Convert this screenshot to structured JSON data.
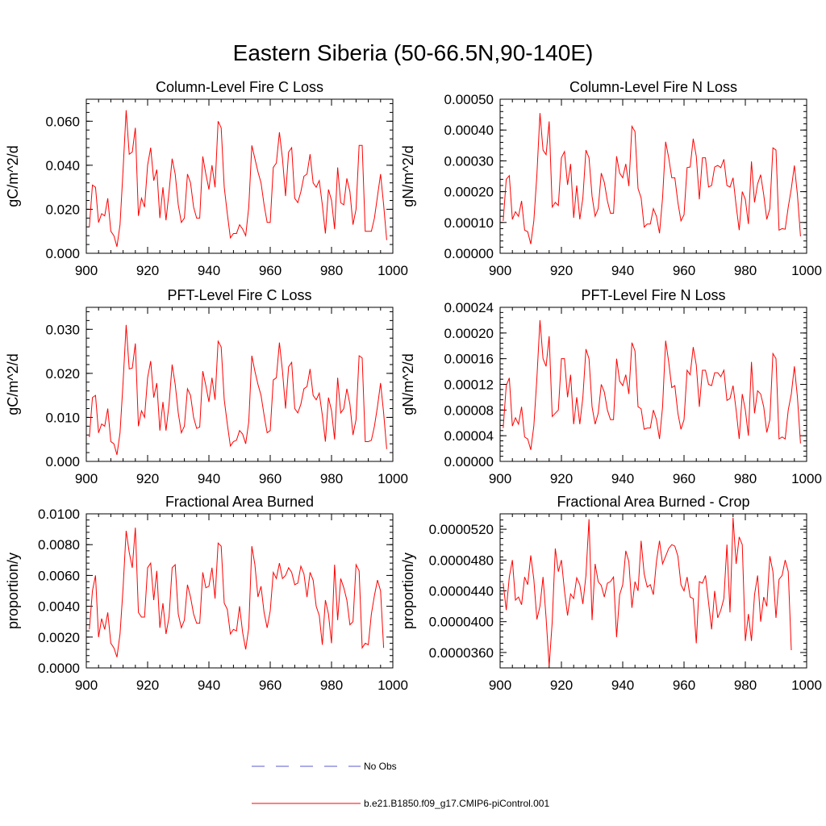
{
  "figure": {
    "title": "Eastern Siberia (50-66.5N,90-140E)"
  },
  "legend": [
    {
      "label": "No Obs",
      "color": "#5a5ad0",
      "style": "dashed"
    },
    {
      "label": "b.e21.B1850.f09_g17.CMIP6-piControl.001",
      "color": "#ff0000",
      "style": "solid"
    }
  ],
  "chart_data": [
    {
      "type": "line",
      "title": "Column-Level Fire C Loss",
      "ylabel": "gC/m^2/d",
      "xlim": [
        900,
        1000
      ],
      "ylim": [
        0,
        0.07
      ],
      "xticks": [
        "900",
        "920",
        "940",
        "960",
        "980",
        "1000"
      ],
      "yticks": [
        0.0,
        0.02,
        0.04,
        0.06
      ],
      "ytick_labels": [
        "0.000",
        "0.020",
        "0.040",
        "0.060"
      ],
      "series": [
        {
          "color": "#ff0000",
          "x_start": 901,
          "values": [
            0.012,
            0.031,
            0.03,
            0.014,
            0.018,
            0.017,
            0.025,
            0.01,
            0.008,
            0.003,
            0.013,
            0.038,
            0.065,
            0.045,
            0.046,
            0.057,
            0.017,
            0.025,
            0.021,
            0.04,
            0.048,
            0.033,
            0.038,
            0.016,
            0.03,
            0.015,
            0.028,
            0.043,
            0.036,
            0.022,
            0.014,
            0.016,
            0.036,
            0.032,
            0.021,
            0.016,
            0.016,
            0.044,
            0.036,
            0.029,
            0.04,
            0.03,
            0.06,
            0.057,
            0.03,
            0.018,
            0.007,
            0.009,
            0.009,
            0.013,
            0.011,
            0.008,
            0.021,
            0.049,
            0.043,
            0.037,
            0.032,
            0.022,
            0.014,
            0.014,
            0.039,
            0.041,
            0.055,
            0.043,
            0.026,
            0.046,
            0.048,
            0.025,
            0.023,
            0.028,
            0.035,
            0.036,
            0.045,
            0.032,
            0.03,
            0.033,
            0.022,
            0.009,
            0.029,
            0.024,
            0.011,
            0.039,
            0.023,
            0.022,
            0.034,
            0.028,
            0.013,
            0.02,
            0.049,
            0.049,
            0.01,
            0.01,
            0.01,
            0.016,
            0.026,
            0.036,
            0.022,
            0.006
          ]
        }
      ]
    },
    {
      "type": "line",
      "title": "Column-Level Fire N Loss",
      "ylabel": "gN/m^2/d",
      "xlim": [
        900,
        1000
      ],
      "ylim": [
        0,
        0.0005
      ],
      "xticks": [
        "900",
        "920",
        "940",
        "960",
        "980",
        "1000"
      ],
      "yticks": [
        0.0,
        0.0001,
        0.0002,
        0.0003,
        0.0004,
        0.0005
      ],
      "ytick_labels": [
        "0.00000",
        "0.00010",
        "0.00020",
        "0.00030",
        "0.00040",
        "0.00050"
      ],
      "series": [
        {
          "color": "#ff0000",
          "x_start": 901,
          "values": [
            0.000105,
            0.00024,
            0.000252,
            0.00011,
            0.000135,
            0.00012,
            0.00017,
            7.5e-05,
            7e-05,
            3e-05,
            0.000105,
            0.000255,
            0.000455,
            0.000335,
            0.00032,
            0.000428,
            0.00015,
            0.000165,
            0.000155,
            0.00031,
            0.00033,
            0.000222,
            0.00029,
            0.000115,
            0.00022,
            0.00011,
            0.00018,
            0.000335,
            0.00031,
            0.000185,
            0.00012,
            0.000145,
            0.00026,
            0.00023,
            0.00017,
            0.00013,
            0.00013,
            0.000315,
            0.00026,
            0.000245,
            0.00029,
            0.000218,
            0.000412,
            0.000395,
            0.00021,
            0.00018,
            8.5e-05,
            9.5e-05,
            9.5e-05,
            0.000145,
            0.00012,
            6.5e-05,
            0.00018,
            0.000362,
            0.00031,
            0.000245,
            0.000245,
            0.000165,
            0.000105,
            0.000125,
            0.000278,
            0.00028,
            0.000372,
            0.000315,
            0.000175,
            0.00031,
            0.00031,
            0.000215,
            0.00022,
            0.00028,
            0.000285,
            0.000278,
            0.000305,
            0.00022,
            0.000215,
            0.000245,
            0.000155,
            7.5e-05,
            0.0002,
            0.000175,
            9.5e-05,
            0.000298,
            0.000165,
            0.000225,
            0.000255,
            0.00019,
            0.00011,
            0.000145,
            0.000342,
            0.000335,
            7.5e-05,
            8e-05,
            7.8e-05,
            0.00015,
            0.00021,
            0.000285,
            0.00019,
            5.5e-05
          ]
        }
      ]
    },
    {
      "type": "line",
      "title": "PFT-Level Fire C Loss",
      "ylabel": "gC/m^2/d",
      "xlim": [
        900,
        1000
      ],
      "ylim": [
        0,
        0.035
      ],
      "xticks": [
        "900",
        "920",
        "940",
        "960",
        "980",
        "1000"
      ],
      "yticks": [
        0.0,
        0.01,
        0.02,
        0.03
      ],
      "ytick_labels": [
        "0.000",
        "0.010",
        "0.020",
        "0.030"
      ],
      "series": [
        {
          "color": "#ff0000",
          "x_start": 901,
          "values": [
            0.0055,
            0.0145,
            0.015,
            0.0065,
            0.0085,
            0.008,
            0.012,
            0.0045,
            0.004,
            0.0015,
            0.0065,
            0.018,
            0.031,
            0.021,
            0.0212,
            0.0268,
            0.008,
            0.0115,
            0.01,
            0.019,
            0.0228,
            0.0145,
            0.0178,
            0.007,
            0.0135,
            0.007,
            0.013,
            0.022,
            0.0175,
            0.011,
            0.0065,
            0.008,
            0.0165,
            0.015,
            0.01,
            0.0075,
            0.0078,
            0.0205,
            0.0172,
            0.0135,
            0.019,
            0.014,
            0.0273,
            0.026,
            0.014,
            0.0085,
            0.0035,
            0.0045,
            0.0048,
            0.007,
            0.0062,
            0.004,
            0.009,
            0.024,
            0.0205,
            0.0175,
            0.015,
            0.0105,
            0.0065,
            0.007,
            0.0185,
            0.019,
            0.027,
            0.0205,
            0.012,
            0.0215,
            0.0225,
            0.012,
            0.011,
            0.013,
            0.0165,
            0.017,
            0.021,
            0.015,
            0.014,
            0.0155,
            0.0105,
            0.0045,
            0.0145,
            0.0115,
            0.005,
            0.019,
            0.011,
            0.012,
            0.0165,
            0.013,
            0.006,
            0.0095,
            0.024,
            0.0235,
            0.0045,
            0.0045,
            0.0048,
            0.008,
            0.0125,
            0.0178,
            0.011,
            0.0028
          ]
        }
      ]
    },
    {
      "type": "line",
      "title": "PFT-Level Fire N Loss",
      "ylabel": "gN/m^2/d",
      "xlim": [
        900,
        1000
      ],
      "ylim": [
        0,
        0.00024
      ],
      "xticks": [
        "900",
        "920",
        "940",
        "960",
        "980",
        "1000"
      ],
      "yticks": [
        0.0,
        4e-05,
        8e-05,
        0.00012,
        0.00016,
        0.0002,
        0.00024
      ],
      "ytick_labels": [
        "0.00000",
        "0.00004",
        "0.00008",
        "0.00012",
        "0.00016",
        "0.00020",
        "0.00024"
      ],
      "series": [
        {
          "color": "#ff0000",
          "x_start": 901,
          "values": [
            5.2e-05,
            0.000118,
            0.00013,
            5.5e-05,
            6.8e-05,
            5.8e-05,
            8.5e-05,
            3.8e-05,
            3.5e-05,
            1.8e-05,
            5.5e-05,
            0.00013,
            0.00022,
            0.00016,
            0.000148,
            0.000195,
            7e-05,
            7.5e-05,
            8e-05,
            0.00016,
            0.00016,
            0.0001,
            0.000135,
            5.8e-05,
            0.0001,
            5.8e-05,
            0.0001,
            0.000175,
            0.00016,
            8.5e-05,
            5.8e-05,
            7.5e-05,
            0.00012,
            0.000108,
            8e-05,
            6.5e-05,
            6.5e-05,
            0.00016,
            0.000125,
            0.000118,
            0.000135,
            0.000105,
            0.000185,
            0.000172,
            8.5e-05,
            8.2e-05,
            5e-05,
            5.2e-05,
            5.2e-05,
            8e-05,
            6.5e-05,
            3.5e-05,
            8.5e-05,
            0.000188,
            0.000155,
            0.000115,
            0.000118,
            7.5e-05,
            5e-05,
            6.5e-05,
            0.000142,
            0.000135,
            0.000178,
            0.00015,
            8.5e-05,
            0.000142,
            0.000142,
            0.00012,
            0.000118,
            0.000138,
            0.000138,
            0.000132,
            0.000142,
            9.5e-05,
            9.8e-05,
            0.000118,
            8e-05,
            3.5e-05,
            0.000105,
            8e-05,
            4e-05,
            0.000155,
            7.5e-05,
            0.00011,
            0.000105,
            8.5e-05,
            4.5e-05,
            6.5e-05,
            0.000168,
            0.00016,
            3.5e-05,
            3.8e-05,
            3.5e-05,
            8e-05,
            0.000105,
            0.000148,
            0.0001,
            2.8e-05
          ]
        }
      ]
    },
    {
      "type": "line",
      "title": "Fractional Area Burned",
      "ylabel": "proportion/y",
      "xlim": [
        900,
        1000
      ],
      "ylim": [
        0,
        0.01
      ],
      "xticks": [
        "900",
        "920",
        "940",
        "960",
        "980",
        "1000"
      ],
      "yticks": [
        0.0,
        0.002,
        0.004,
        0.006,
        0.008,
        0.01
      ],
      "ytick_labels": [
        "0.0000",
        "0.0020",
        "0.0040",
        "0.0060",
        "0.0080",
        "0.0100"
      ],
      "series": [
        {
          "color": "#ff0000",
          "x_start": 901,
          "values": [
            0.0025,
            0.005,
            0.006,
            0.002,
            0.0032,
            0.0025,
            0.0036,
            0.0016,
            0.0013,
            0.0007,
            0.0022,
            0.0052,
            0.0089,
            0.0075,
            0.0065,
            0.0091,
            0.0036,
            0.0033,
            0.0033,
            0.0065,
            0.0068,
            0.0044,
            0.0063,
            0.0026,
            0.0042,
            0.0022,
            0.0033,
            0.0065,
            0.0067,
            0.0035,
            0.0026,
            0.0031,
            0.0054,
            0.0046,
            0.0035,
            0.0029,
            0.0029,
            0.0062,
            0.0052,
            0.0053,
            0.0065,
            0.0045,
            0.0081,
            0.0079,
            0.0042,
            0.0038,
            0.0022,
            0.0025,
            0.0024,
            0.004,
            0.0023,
            0.0012,
            0.0026,
            0.0079,
            0.0067,
            0.0046,
            0.0053,
            0.0036,
            0.0026,
            0.0037,
            0.0062,
            0.0058,
            0.0068,
            0.0058,
            0.006,
            0.0065,
            0.0062,
            0.0054,
            0.0055,
            0.0066,
            0.0061,
            0.0046,
            0.0062,
            0.0057,
            0.004,
            0.0034,
            0.0015,
            0.0044,
            0.0035,
            0.0016,
            0.0067,
            0.0031,
            0.0058,
            0.0052,
            0.0044,
            0.0028,
            0.003,
            0.0067,
            0.0063,
            0.0013,
            0.0016,
            0.0015,
            0.0035,
            0.0047,
            0.0057,
            0.005,
            0.0013
          ]
        }
      ]
    },
    {
      "type": "line",
      "title": "Fractional Area Burned - Crop",
      "ylabel": "proportion/y",
      "xlim": [
        900,
        1000
      ],
      "ylim": [
        3.4e-05,
        5.4e-05
      ],
      "xticks": [
        "900",
        "920",
        "940",
        "960",
        "980",
        "1000"
      ],
      "yticks": [
        3.6e-05,
        4e-05,
        4.4e-05,
        4.8e-05,
        5.2e-05
      ],
      "ytick_labels": [
        "0.0000360",
        "0.0000400",
        "0.0000440",
        "0.0000480",
        "0.0000520"
      ],
      "series": [
        {
          "color": "#ff0000",
          "x_start": 901,
          "values": [
            4.5e-05,
            4.15e-05,
            4.58e-05,
            4.8e-05,
            4.28e-05,
            4.32e-05,
            4.22e-05,
            4.58e-05,
            4.48e-05,
            4.86e-05,
            4.55e-05,
            4.03e-05,
            4.2e-05,
            4.58e-05,
            4.05e-05,
            3.42e-05,
            4e-05,
            4.95e-05,
            4.65e-05,
            4.8e-05,
            4.4e-05,
            4.08e-05,
            4.36e-05,
            4.3e-05,
            4.57e-05,
            4.48e-05,
            4.23e-05,
            4.6e-05,
            5.33e-05,
            4.02e-05,
            4.75e-05,
            4.52e-05,
            4.47e-05,
            4.32e-05,
            4.5e-05,
            4.52e-05,
            4.58e-05,
            3.8e-05,
            4.35e-05,
            4.48e-05,
            4.92e-05,
            4.78e-05,
            4.18e-05,
            4.52e-05,
            4.4e-05,
            5.05e-05,
            4.62e-05,
            4.45e-05,
            4.48e-05,
            4.35e-05,
            4.78e-05,
            5.05e-05,
            4.75e-05,
            4.85e-05,
            4.95e-05,
            5e-05,
            4.98e-05,
            4.85e-05,
            4.48e-05,
            4.4e-05,
            4.58e-05,
            4.32e-05,
            4.3e-05,
            3.72e-05,
            4.52e-05,
            4.5e-05,
            4.6e-05,
            4.25e-05,
            3.9e-05,
            4.4e-05,
            4.05e-05,
            4.15e-05,
            4.3e-05,
            5e-05,
            4.12e-05,
            5.35e-05,
            4.75e-05,
            5.1e-05,
            5e-05,
            3.75e-05,
            4.1e-05,
            3.75e-05,
            4.35e-05,
            4.6e-05,
            4e-05,
            4.32e-05,
            4.2e-05,
            4.85e-05,
            4.65e-05,
            4.05e-05,
            4.55e-05,
            4.6e-05,
            4.8e-05,
            4.65e-05,
            3.63e-05
          ]
        }
      ]
    }
  ]
}
